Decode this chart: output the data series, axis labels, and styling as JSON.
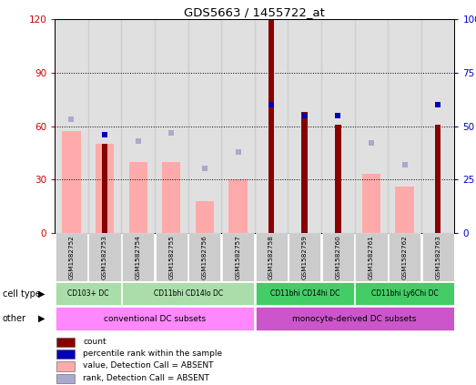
{
  "title": "GDS5663 / 1455722_at",
  "samples": [
    "GSM1582752",
    "GSM1582753",
    "GSM1582754",
    "GSM1582755",
    "GSM1582756",
    "GSM1582757",
    "GSM1582758",
    "GSM1582759",
    "GSM1582760",
    "GSM1582761",
    "GSM1582762",
    "GSM1582763"
  ],
  "count_values": [
    0,
    50,
    0,
    0,
    0,
    0,
    120,
    68,
    61,
    0,
    0,
    61
  ],
  "percentile_values": [
    0,
    46,
    0,
    0,
    0,
    0,
    60,
    55,
    55,
    0,
    0,
    60
  ],
  "absent_value": [
    57,
    50,
    40,
    40,
    18,
    30,
    0,
    0,
    0,
    33,
    26,
    0
  ],
  "absent_rank": [
    53,
    0,
    43,
    47,
    30,
    38,
    0,
    0,
    0,
    42,
    32,
    0
  ],
  "cell_type_groups": [
    {
      "label": "CD103+ DC",
      "start": 0,
      "end": 1,
      "color": "#aaddaa"
    },
    {
      "label": "CD11bhi CD14lo DC",
      "start": 2,
      "end": 5,
      "color": "#aaddaa"
    },
    {
      "label": "CD11bhi CD14hi DC",
      "start": 6,
      "end": 8,
      "color": "#44cc66"
    },
    {
      "label": "CD11bhi Ly6Chi DC",
      "start": 9,
      "end": 11,
      "color": "#44cc66"
    }
  ],
  "other_groups": [
    {
      "label": "conventional DC subsets",
      "start": 0,
      "end": 5,
      "color": "#ff88ff"
    },
    {
      "label": "monocyte-derived DC subsets",
      "start": 6,
      "end": 11,
      "color": "#cc55cc"
    }
  ],
  "ylim_left": [
    0,
    120
  ],
  "ylim_right": [
    0,
    100
  ],
  "yticks_left": [
    0,
    30,
    60,
    90,
    120
  ],
  "yticks_right": [
    0,
    25,
    50,
    75,
    100
  ],
  "color_count": "#880000",
  "color_percentile": "#0000bb",
  "color_absent_value": "#ffaaaa",
  "color_absent_rank": "#aaaacc",
  "bg_color": "#cccccc",
  "legend_items": [
    {
      "label": "count",
      "color": "#880000"
    },
    {
      "label": "percentile rank within the sample",
      "color": "#0000bb"
    },
    {
      "label": "value, Detection Call = ABSENT",
      "color": "#ffaaaa"
    },
    {
      "label": "rank, Detection Call = ABSENT",
      "color": "#aaaacc"
    }
  ]
}
